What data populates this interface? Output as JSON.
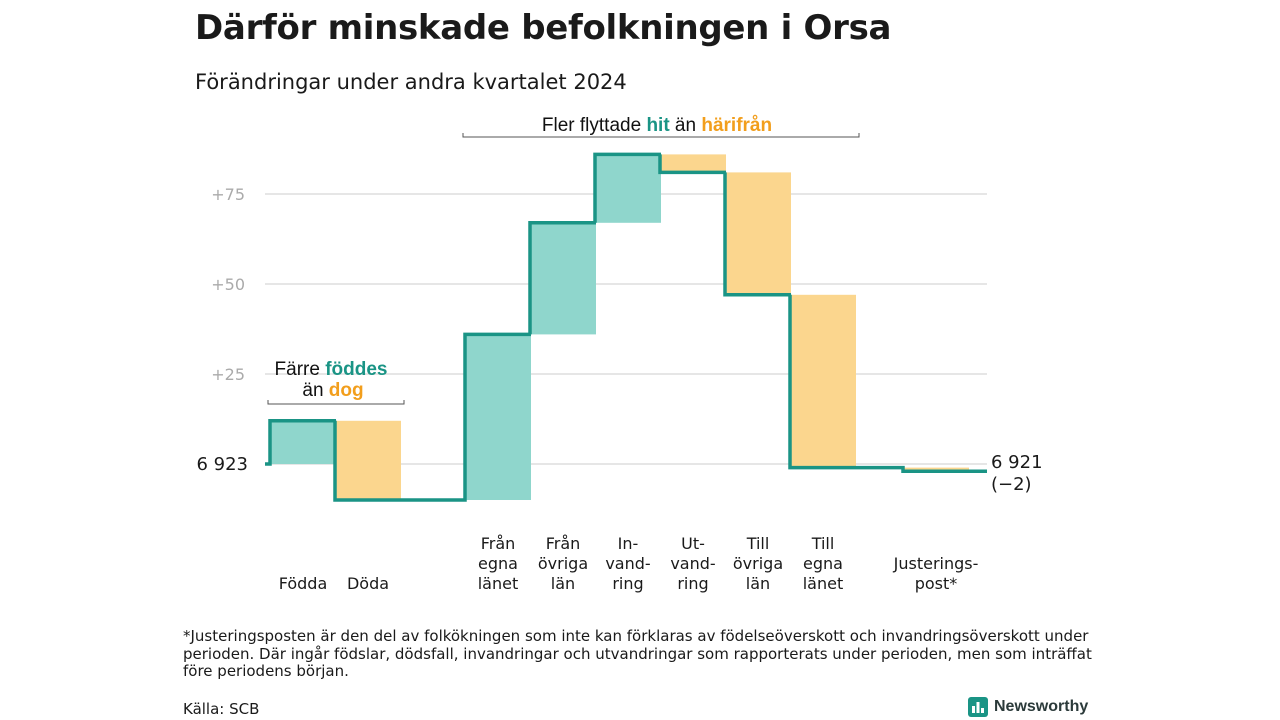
{
  "title": "Därför minskade befolkningen i Orsa",
  "subtitle": "Förändringar under andra kvartalet 2024",
  "chart_data": {
    "type": "waterfall",
    "start": 6923,
    "start_label": "6  923",
    "end_label": "6 921",
    "end_change_label": "(−2)",
    "y_ticks": [
      {
        "value": 25,
        "label": "+25"
      },
      {
        "value": 50,
        "label": "+50"
      },
      {
        "value": 75,
        "label": "+75"
      }
    ],
    "ylim": [
      -12,
      87
    ],
    "grid": true,
    "steps": [
      {
        "label_lines": [
          "Födda"
        ],
        "change": 12
      },
      {
        "label_lines": [
          "Döda"
        ],
        "change": -22
      },
      {
        "label_lines": [
          "Från",
          "egna",
          "länet"
        ],
        "change": 46
      },
      {
        "label_lines": [
          "Från",
          "övriga",
          "län"
        ],
        "change": 31
      },
      {
        "label_lines": [
          "In-",
          "vand-",
          "ring"
        ],
        "change": 19
      },
      {
        "label_lines": [
          "Ut-",
          "vand-",
          "ring"
        ],
        "change": -5
      },
      {
        "label_lines": [
          "Till",
          "övriga",
          "län"
        ],
        "change": -34
      },
      {
        "label_lines": [
          "Till",
          "egna",
          "länet"
        ],
        "change": -48
      },
      {
        "label_lines": [
          "Justerings-",
          "post*"
        ],
        "change": -1
      }
    ],
    "colors": {
      "increase": "#8fd6cc",
      "decrease": "#fbd68e",
      "line": "#1a9485",
      "accent_hit": "#1a9485",
      "accent_fran": "#f29e1c",
      "grid": "#dddddd",
      "tick": "#aaaaaa"
    },
    "annotations": [
      {
        "id": "births",
        "line1_prefix": "Färre",
        "line1_highlight": "föddes",
        "line2_prefix": "än",
        "line2_highlight": "dog"
      },
      {
        "id": "moves",
        "prefix": "Fler flyttade",
        "highlight1": "hit",
        "middle": "än",
        "highlight2": "härifrån"
      }
    ]
  },
  "footnote": "*Justeringsposten är den del av folkökningen som inte kan förklaras av födelseöverskott och invandringsöverskott under perioden. Där ingår födslar, dödsfall, invandringar och utvandringar som rapporterats under perioden, men som inträffat före periodens början.",
  "source": "Källa: SCB",
  "brand": {
    "name": "Newsworthy",
    "icon": "bar-chart-icon"
  }
}
